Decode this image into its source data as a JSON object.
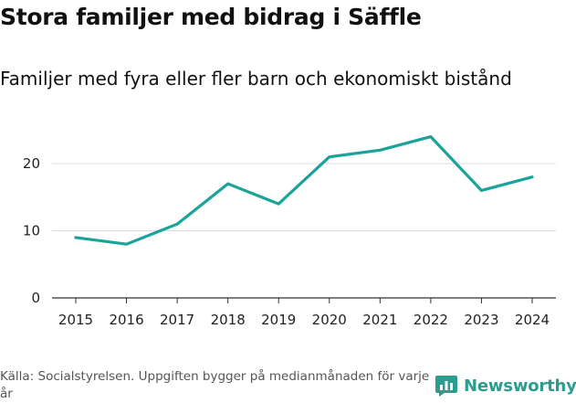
{
  "header": {
    "title": "Stora familjer med bidrag i Säffle",
    "subtitle": "Familjer med fyra eller fler barn och ekonomiskt bistånd"
  },
  "footer": {
    "source": "Källa: Socialstyrelsen. Uppgiften bygger på medianmånaden för varje år",
    "brand": "Newsworthy"
  },
  "colors": {
    "line": "#1aa39a",
    "grid": "#dcdcdc",
    "axis": "#333333",
    "brand": "#2a9d8f"
  },
  "chart_data": {
    "type": "line",
    "title": "Stora familjer med bidrag i Säffle",
    "subtitle": "Familjer med fyra eller fler barn och ekonomiskt bistånd",
    "xlabel": "",
    "ylabel": "",
    "categories": [
      "2015",
      "2016",
      "2017",
      "2018",
      "2019",
      "2020",
      "2021",
      "2022",
      "2023",
      "2024"
    ],
    "series": [
      {
        "name": "Familjer",
        "values": [
          9,
          8,
          11,
          17,
          14,
          21,
          22,
          24,
          16,
          18
        ]
      }
    ],
    "yticks": [
      0,
      10,
      20
    ],
    "ylim": [
      0,
      27
    ],
    "grid": true,
    "legend": "none"
  }
}
